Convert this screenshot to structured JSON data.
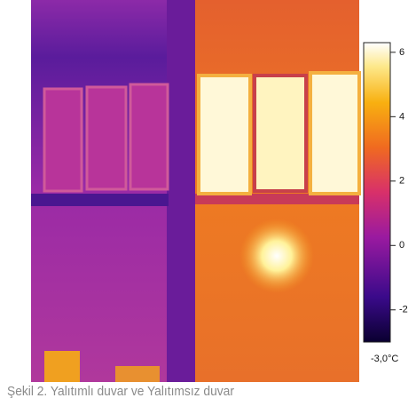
{
  "figure": {
    "caption": "Şekil 2. Yalıtımlı duvar ve Yalıtımsız duvar"
  },
  "colorbar": {
    "range": [
      -3,
      6.3
    ],
    "ticks": [
      6,
      4,
      2,
      0,
      -2
    ],
    "min_label": "-3,0°C"
  }
}
